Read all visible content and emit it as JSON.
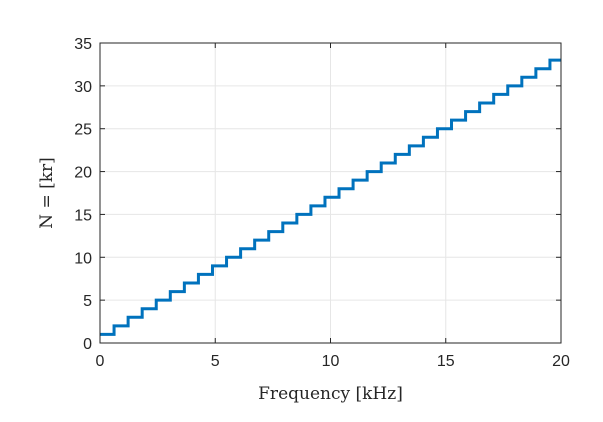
{
  "chart_data": {
    "type": "line",
    "line_style": "step",
    "xlabel": "Frequency [kHz]",
    "ylabel": "N = [kr]",
    "xlim": [
      0,
      20
    ],
    "ylim": [
      0,
      35
    ],
    "xticks": [
      0,
      5,
      10,
      15,
      20
    ],
    "yticks": [
      0,
      5,
      10,
      15,
      20,
      25,
      30,
      35
    ],
    "grid": true,
    "series": [
      {
        "color": "#0072BD",
        "x": [
          0,
          0.61,
          1.22,
          1.83,
          2.44,
          3.05,
          3.66,
          4.27,
          4.88,
          5.49,
          6.1,
          6.71,
          7.32,
          7.93,
          8.54,
          9.15,
          9.76,
          10.37,
          10.98,
          11.59,
          12.2,
          12.81,
          13.42,
          14.03,
          14.64,
          15.25,
          15.86,
          16.47,
          17.08,
          17.69,
          18.3,
          18.91,
          19.52,
          20
        ],
        "values": [
          1,
          2,
          3,
          4,
          5,
          6,
          7,
          8,
          9,
          10,
          11,
          12,
          13,
          14,
          15,
          16,
          17,
          18,
          19,
          20,
          21,
          22,
          23,
          24,
          25,
          26,
          27,
          28,
          29,
          30,
          31,
          32,
          33,
          33
        ]
      }
    ]
  }
}
